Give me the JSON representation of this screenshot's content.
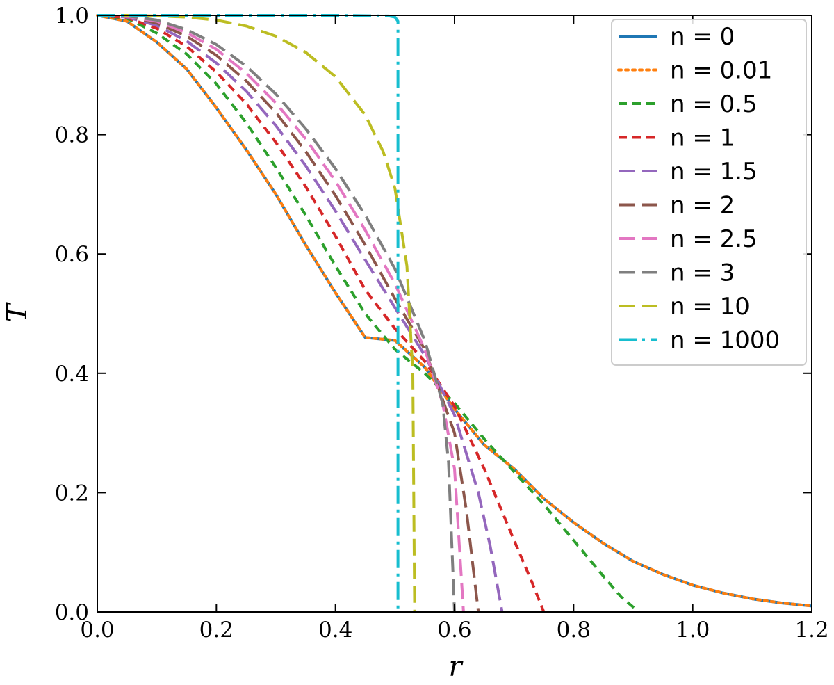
{
  "chart_data": {
    "type": "line",
    "title": "",
    "xlabel": "r",
    "ylabel": "T",
    "xlim": [
      0.0,
      1.2
    ],
    "ylim": [
      0.0,
      1.0
    ],
    "x_ticks": [
      "0.0",
      "0.2",
      "0.4",
      "0.6",
      "0.8",
      "1.0",
      "1.2"
    ],
    "y_ticks": [
      "0.0",
      "0.2",
      "0.4",
      "0.6",
      "0.8",
      "1.0"
    ],
    "grid": false,
    "legend_position": "upper right",
    "series": [
      {
        "name": "n = 0",
        "color": "#1f77b4",
        "dash": "solid",
        "x": [
          0,
          0.05,
          0.1,
          0.15,
          0.2,
          0.25,
          0.3,
          0.35,
          0.4,
          0.45,
          0.5,
          0.55,
          0.6,
          0.65,
          0.7,
          0.75,
          0.8,
          0.85,
          0.9,
          0.95,
          1.0,
          1.05,
          1.1,
          1.15,
          1.2
        ],
        "y": [
          1.0,
          0.99,
          0.955,
          0.91,
          0.845,
          0.775,
          0.7,
          0.615,
          0.535,
          0.46,
          0.455,
          0.41,
          0.34,
          0.28,
          0.24,
          0.19,
          0.15,
          0.115,
          0.085,
          0.063,
          0.045,
          0.032,
          0.022,
          0.015,
          0.01
        ]
      },
      {
        "name": "n = 0.01",
        "color": "#ff7f0e",
        "dash": "dotted",
        "x": [
          0,
          0.05,
          0.1,
          0.15,
          0.2,
          0.25,
          0.3,
          0.35,
          0.4,
          0.45,
          0.5,
          0.55,
          0.6,
          0.65,
          0.7,
          0.75,
          0.8,
          0.85,
          0.9,
          0.95,
          1.0,
          1.05,
          1.1,
          1.15,
          1.2
        ],
        "y": [
          1.0,
          0.99,
          0.955,
          0.91,
          0.845,
          0.775,
          0.7,
          0.615,
          0.535,
          0.46,
          0.455,
          0.41,
          0.34,
          0.28,
          0.24,
          0.19,
          0.15,
          0.115,
          0.085,
          0.063,
          0.045,
          0.032,
          0.022,
          0.015,
          0.01
        ]
      },
      {
        "name": "n = 0.5",
        "color": "#2ca02c",
        "dash": "dashed",
        "x": [
          0,
          0.05,
          0.1,
          0.15,
          0.2,
          0.25,
          0.3,
          0.35,
          0.4,
          0.45,
          0.5,
          0.55,
          0.6,
          0.65,
          0.7,
          0.75,
          0.8,
          0.85,
          0.88,
          0.91
        ],
        "y": [
          1.0,
          0.995,
          0.97,
          0.935,
          0.885,
          0.82,
          0.745,
          0.665,
          0.58,
          0.5,
          0.44,
          0.4,
          0.35,
          0.29,
          0.235,
          0.18,
          0.12,
          0.06,
          0.025,
          0.0
        ]
      },
      {
        "name": "n = 1",
        "color": "#d62728",
        "dash": "dashed",
        "x": [
          0,
          0.05,
          0.1,
          0.15,
          0.2,
          0.25,
          0.3,
          0.35,
          0.4,
          0.45,
          0.5,
          0.55,
          0.6,
          0.65,
          0.7,
          0.73,
          0.75
        ],
        "y": [
          1.0,
          0.996,
          0.978,
          0.948,
          0.905,
          0.852,
          0.787,
          0.713,
          0.63,
          0.54,
          0.475,
          0.42,
          0.345,
          0.24,
          0.12,
          0.05,
          0.0
        ]
      },
      {
        "name": "n = 1.5",
        "color": "#9467bd",
        "dash": "longdash",
        "x": [
          0,
          0.05,
          0.1,
          0.15,
          0.2,
          0.25,
          0.3,
          0.35,
          0.4,
          0.45,
          0.5,
          0.55,
          0.6,
          0.64,
          0.66,
          0.68
        ],
        "y": [
          1.0,
          0.997,
          0.983,
          0.957,
          0.92,
          0.873,
          0.815,
          0.748,
          0.672,
          0.59,
          0.51,
          0.43,
          0.33,
          0.2,
          0.11,
          0.0
        ]
      },
      {
        "name": "n = 2",
        "color": "#8c564b",
        "dash": "longdash",
        "x": [
          0,
          0.05,
          0.1,
          0.15,
          0.2,
          0.25,
          0.3,
          0.35,
          0.4,
          0.45,
          0.5,
          0.55,
          0.6,
          0.62,
          0.64
        ],
        "y": [
          1.0,
          0.998,
          0.987,
          0.965,
          0.933,
          0.89,
          0.837,
          0.772,
          0.698,
          0.615,
          0.525,
          0.44,
          0.3,
          0.17,
          0.0
        ]
      },
      {
        "name": "n = 2.5",
        "color": "#e377c2",
        "dash": "longdash",
        "x": [
          0,
          0.05,
          0.1,
          0.15,
          0.2,
          0.25,
          0.3,
          0.35,
          0.4,
          0.45,
          0.5,
          0.55,
          0.58,
          0.6,
          0.615
        ],
        "y": [
          1.0,
          0.998,
          0.99,
          0.971,
          0.943,
          0.903,
          0.853,
          0.793,
          0.722,
          0.64,
          0.55,
          0.44,
          0.35,
          0.24,
          0.0
        ]
      },
      {
        "name": "n = 3",
        "color": "#7f7f7f",
        "dash": "longdash",
        "x": [
          0,
          0.05,
          0.1,
          0.15,
          0.2,
          0.25,
          0.3,
          0.35,
          0.4,
          0.45,
          0.5,
          0.55,
          0.58,
          0.59,
          0.6
        ],
        "y": [
          1.0,
          0.999,
          0.992,
          0.976,
          0.951,
          0.915,
          0.868,
          0.81,
          0.743,
          0.665,
          0.575,
          0.455,
          0.35,
          0.25,
          0.0
        ]
      },
      {
        "name": "n = 10",
        "color": "#bcbd22",
        "dash": "longdash",
        "x": [
          0,
          0.05,
          0.1,
          0.15,
          0.2,
          0.25,
          0.3,
          0.35,
          0.4,
          0.45,
          0.48,
          0.5,
          0.52,
          0.53,
          0.533
        ],
        "y": [
          1.0,
          1.0,
          0.999,
          0.997,
          0.992,
          0.982,
          0.965,
          0.938,
          0.897,
          0.833,
          0.772,
          0.71,
          0.58,
          0.4,
          0.0
        ]
      },
      {
        "name": "n = 1000",
        "color": "#17becf",
        "dash": "dashdot",
        "x": [
          0,
          0.2,
          0.4,
          0.49,
          0.5,
          0.505,
          0.505
        ],
        "y": [
          1.0,
          1.0,
          1.0,
          0.999,
          0.997,
          0.99,
          0.0
        ]
      }
    ]
  }
}
